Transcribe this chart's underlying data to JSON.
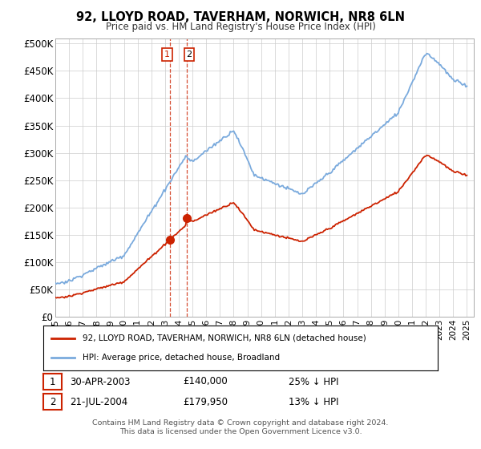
{
  "title": "92, LLOYD ROAD, TAVERHAM, NORWICH, NR8 6LN",
  "subtitle": "Price paid vs. HM Land Registry's House Price Index (HPI)",
  "yticks": [
    0,
    50000,
    100000,
    150000,
    200000,
    250000,
    300000,
    350000,
    400000,
    450000,
    500000
  ],
  "ytick_labels": [
    "£0",
    "£50K",
    "£100K",
    "£150K",
    "£200K",
    "£250K",
    "£300K",
    "£350K",
    "£400K",
    "£450K",
    "£500K"
  ],
  "hpi_color": "#7aaadd",
  "price_color": "#cc2200",
  "sale1_x": 2003.333,
  "sale1_price": 140000,
  "sale1_date": "30-APR-2003",
  "sale1_pct": "25% ↓ HPI",
  "sale2_x": 2004.583,
  "sale2_price": 179950,
  "sale2_date": "21-JUL-2004",
  "sale2_pct": "13% ↓ HPI",
  "legend_label1": "92, LLOYD ROAD, TAVERHAM, NORWICH, NR8 6LN (detached house)",
  "legend_label2": "HPI: Average price, detached house, Broadland",
  "footer": "Contains HM Land Registry data © Crown copyright and database right 2024.\nThis data is licensed under the Open Government Licence v3.0.",
  "background_color": "#ffffff",
  "grid_color": "#cccccc"
}
